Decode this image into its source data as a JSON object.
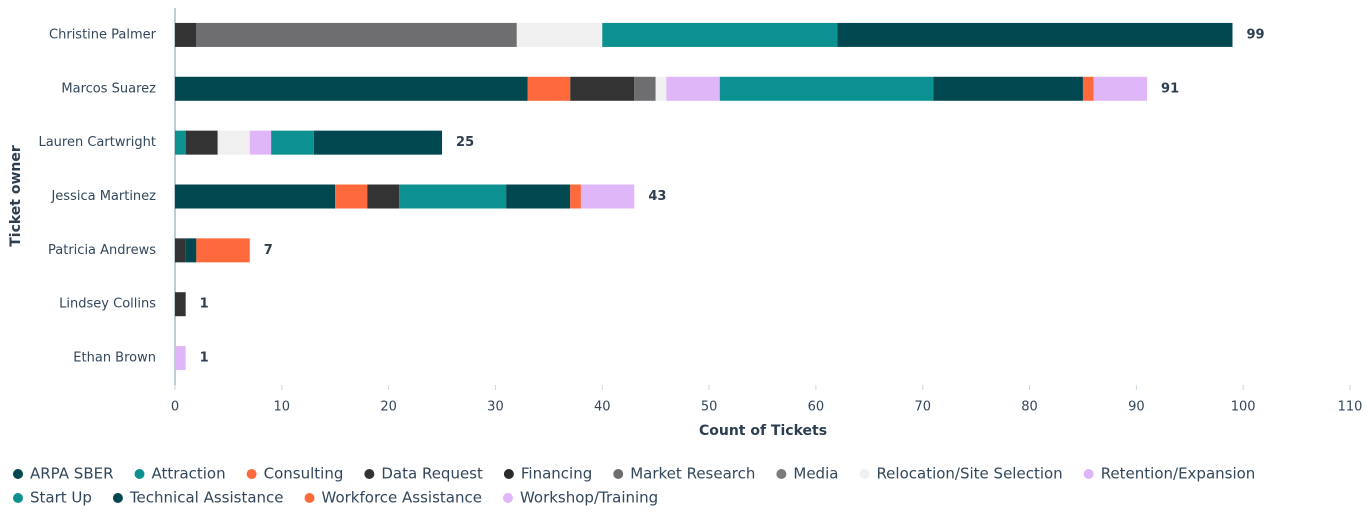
{
  "chart_data": {
    "type": "stacked-horizontal-bar",
    "x_label": "Count of Tickets",
    "y_label": "Ticket owner",
    "categories": [
      "Christine Palmer",
      "Marcos Suarez",
      "Lauren Cartwright",
      "Jessica Martinez",
      "Patricia Andrews",
      "Lindsey Collins",
      "Ethan Brown"
    ],
    "totals": [
      99,
      91,
      25,
      43,
      7,
      1,
      1
    ],
    "xlim": [
      0,
      110
    ],
    "xticks": [
      0,
      10,
      20,
      30,
      40,
      50,
      60,
      70,
      80,
      90,
      100,
      110
    ],
    "series": [
      {
        "name": "ARPA SBER",
        "color": "#00474f",
        "values": [
          null,
          33,
          null,
          15,
          null,
          null,
          null
        ]
      },
      {
        "name": "Attraction",
        "color": "#0c9190",
        "values": [
          null,
          null,
          1,
          null,
          null,
          null,
          null
        ]
      },
      {
        "name": "Consulting",
        "color": "#ff6a3d",
        "values": [
          null,
          4,
          null,
          3,
          null,
          null,
          null
        ]
      },
      {
        "name": "Data Request",
        "color": "#333333",
        "values": [
          2,
          6,
          3,
          3,
          1,
          1,
          null
        ]
      },
      {
        "name": "Financing",
        "color": "#2b2b2b",
        "values": [
          null,
          null,
          null,
          null,
          null,
          null,
          null
        ]
      },
      {
        "name": "Market Research",
        "color": "#6e6d70",
        "values": [
          30,
          2,
          null,
          null,
          null,
          null,
          null
        ]
      },
      {
        "name": "Media",
        "color": "#7a7a7a",
        "values": [
          null,
          null,
          null,
          null,
          null,
          null,
          null
        ]
      },
      {
        "name": "Relocation/Site Selection",
        "color": "#f0f0f0",
        "values": [
          8,
          1,
          3,
          null,
          null,
          null,
          null
        ]
      },
      {
        "name": "Retention/Expansion",
        "color": "#dfb6f7",
        "values": [
          null,
          5,
          2,
          null,
          null,
          null,
          null
        ]
      },
      {
        "name": "Start Up",
        "color": "#0c9190",
        "values": [
          22,
          20,
          4,
          10,
          null,
          null,
          null
        ]
      },
      {
        "name": "Technical Assistance",
        "color": "#00474f",
        "values": [
          37,
          14,
          12,
          6,
          1,
          null,
          null
        ]
      },
      {
        "name": "Workforce Assistance",
        "color": "#ff6a3d",
        "values": [
          null,
          1,
          null,
          1,
          5,
          null,
          null
        ]
      },
      {
        "name": "Workshop/Training",
        "color": "#dfb6f7",
        "values": [
          null,
          5,
          null,
          5,
          null,
          null,
          1
        ]
      }
    ]
  }
}
